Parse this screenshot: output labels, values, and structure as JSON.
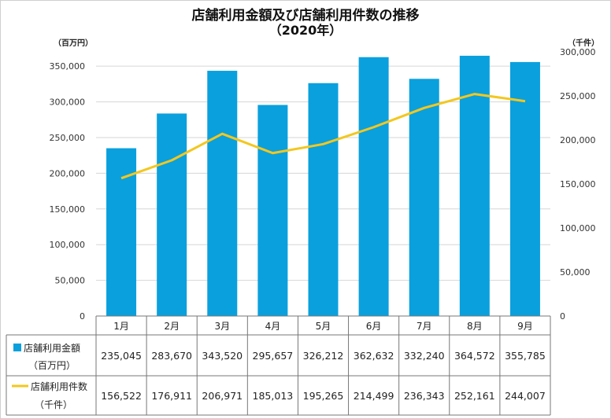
{
  "chart_data": {
    "type": "bar",
    "title": "店舗利用金額及び店舗利用件数の推移",
    "subtitle": "（2020年）",
    "categories": [
      "1月",
      "2月",
      "3月",
      "4月",
      "5月",
      "6月",
      "7月",
      "8月",
      "9月"
    ],
    "y_left_unit": "（百万円）",
    "y_right_unit": "（千件）",
    "y_left_ticks": [
      "0",
      "50,000",
      "100,000",
      "150,000",
      "200,000",
      "250,000",
      "300,000",
      "350,000"
    ],
    "y_right_ticks": [
      "0",
      "50,000",
      "100,000",
      "150,000",
      "200,000",
      "250,000",
      "300,000"
    ],
    "ylim_left": [
      0,
      370000
    ],
    "ylim_right": [
      0,
      300000
    ],
    "grid": true,
    "colors": {
      "bar": "#0aa0dd",
      "line": "#f3c71f",
      "grid": "#d6d6d6",
      "axis": "#777777"
    },
    "series": [
      {
        "name": "店舗利用金額",
        "unit_label": "（百万円）",
        "type": "bar",
        "axis": "left",
        "values": [
          235045,
          283670,
          343520,
          295657,
          326212,
          362632,
          332240,
          364572,
          355785
        ],
        "labels": [
          "235,045",
          "283,670",
          "343,520",
          "295,657",
          "326,212",
          "362,632",
          "332,240",
          "364,572",
          "355,785"
        ]
      },
      {
        "name": "店舗利用件数",
        "unit_label": "（千件）",
        "type": "line",
        "axis": "right",
        "values": [
          156522,
          176911,
          206971,
          185013,
          195265,
          214499,
          236343,
          252161,
          244007
        ],
        "labels": [
          "156,522",
          "176,911",
          "206,971",
          "185,013",
          "195,265",
          "214,499",
          "236,343",
          "252,161",
          "244,007"
        ]
      }
    ]
  }
}
